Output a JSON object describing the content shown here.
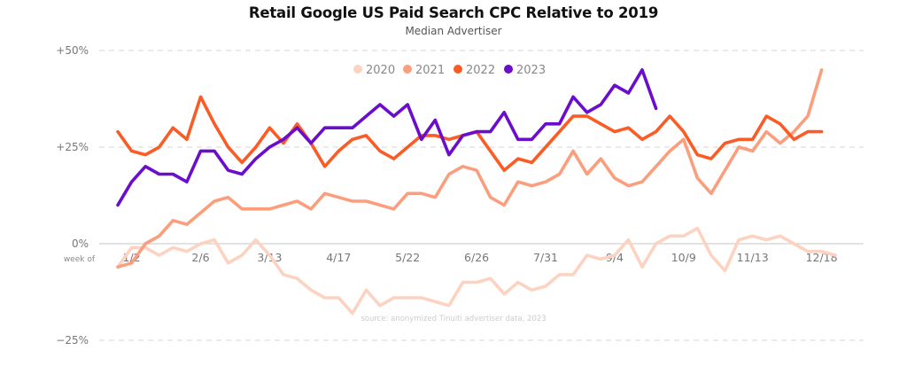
{
  "chart_data": {
    "type": "line",
    "title": "Retail Google US Paid Search CPC Relative to 2019",
    "subtitle": "Median Advertiser",
    "xlabel": "week of",
    "ylabel": "",
    "ylim": [
      -25,
      50
    ],
    "yticks": [
      {
        "value": 50,
        "label": "+50%"
      },
      {
        "value": 25,
        "label": "+25%"
      },
      {
        "value": 0,
        "label": "0%"
      },
      {
        "value": -25,
        "label": "−25%"
      }
    ],
    "xticks": [
      {
        "week": 1,
        "label": "1/2"
      },
      {
        "week": 6,
        "label": "2/6"
      },
      {
        "week": 11,
        "label": "3/13"
      },
      {
        "week": 16,
        "label": "4/17"
      },
      {
        "week": 21,
        "label": "5/22"
      },
      {
        "week": 26,
        "label": "6/26"
      },
      {
        "week": 31,
        "label": "7/31"
      },
      {
        "week": 36,
        "label": "9/4"
      },
      {
        "week": 41,
        "label": "10/9"
      },
      {
        "week": 46,
        "label": "11/13"
      },
      {
        "week": 51,
        "label": "12/18"
      }
    ],
    "grid": "dashed horizontal at +50%, +25%, -25%; solid at 0%",
    "legend_position": "top-center",
    "source_note": "source: anonymized Tinuiti advertiser data, 2023",
    "series": [
      {
        "name": "2020",
        "color": "#fcd3c1",
        "values": [
          -6,
          -1,
          -1,
          -3,
          -1,
          -2,
          0,
          1,
          -5,
          -3,
          1,
          -3,
          -8,
          -9,
          -12,
          -14,
          -14,
          -18,
          -12,
          -16,
          -14,
          -14,
          -14,
          -15,
          -16,
          -10,
          -10,
          -9,
          -13,
          -10,
          -12,
          -11,
          -8,
          -8,
          -3,
          -4,
          -3,
          1,
          -6,
          0,
          2,
          2,
          4,
          -3,
          -7,
          1,
          2,
          1,
          2,
          0,
          -2,
          -2,
          -3
        ]
      },
      {
        "name": "2021",
        "color": "#fb9e7d",
        "values": [
          -6,
          -5,
          0,
          2,
          6,
          5,
          8,
          11,
          12,
          9,
          9,
          9,
          10,
          11,
          9,
          13,
          12,
          11,
          11,
          10,
          9,
          13,
          13,
          12,
          18,
          20,
          19,
          12,
          10,
          16,
          15,
          16,
          18,
          24,
          18,
          22,
          17,
          15,
          16,
          20,
          24,
          27,
          17,
          13,
          19,
          25,
          24,
          29,
          26,
          29,
          33,
          45
        ]
      },
      {
        "name": "2022",
        "color": "#fb5c25",
        "values": [
          29,
          24,
          23,
          25,
          30,
          27,
          38,
          31,
          25,
          21,
          25,
          30,
          26,
          31,
          26,
          20,
          24,
          27,
          28,
          24,
          22,
          25,
          28,
          28,
          27,
          28,
          29,
          24,
          19,
          22,
          21,
          25,
          29,
          33,
          33,
          31,
          29,
          30,
          27,
          29,
          33,
          29,
          23,
          22,
          26,
          27,
          27,
          33,
          31,
          27,
          29,
          29
        ]
      },
      {
        "name": "2023",
        "color": "#6a0dcc",
        "values": [
          10,
          16,
          20,
          18,
          18,
          16,
          24,
          24,
          19,
          18,
          22,
          25,
          27,
          30,
          26,
          30,
          30,
          30,
          33,
          36,
          33,
          36,
          27,
          32,
          23,
          28,
          29,
          29,
          34,
          27,
          27,
          31,
          31,
          38,
          34,
          36,
          41,
          39,
          45,
          35
        ]
      }
    ]
  }
}
